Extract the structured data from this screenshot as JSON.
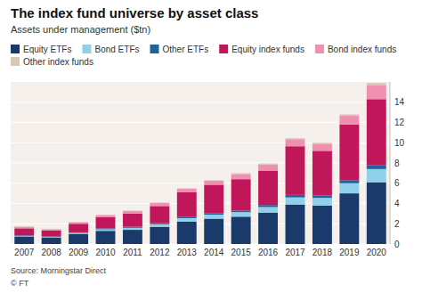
{
  "chart_data": {
    "type": "bar",
    "stacked": true,
    "title": "The index fund universe by asset class",
    "y_label": "Assets under management ($tn)",
    "annotations": [
      "Source: Morningstar Direct",
      "© FT"
    ],
    "categories": [
      "2007",
      "2008",
      "2009",
      "2010",
      "2011",
      "2012",
      "2013",
      "2014",
      "2015",
      "2016",
      "2017",
      "2018",
      "2019",
      "2020"
    ],
    "series": [
      {
        "name": "Equity ETFs",
        "color": "#1a3a6b",
        "values": [
          0.75,
          0.65,
          1.0,
          1.3,
          1.4,
          1.7,
          2.2,
          2.5,
          2.7,
          3.1,
          3.9,
          3.8,
          5.0,
          6.1
        ]
      },
      {
        "name": "Bond ETFs",
        "color": "#90d0e8",
        "values": [
          0.05,
          0.05,
          0.1,
          0.15,
          0.2,
          0.25,
          0.35,
          0.4,
          0.45,
          0.55,
          0.7,
          0.75,
          1.0,
          1.3
        ]
      },
      {
        "name": "Other ETFs",
        "color": "#2060a0",
        "values": [
          0.05,
          0.05,
          0.05,
          0.1,
          0.1,
          0.1,
          0.15,
          0.15,
          0.15,
          0.2,
          0.25,
          0.25,
          0.3,
          0.4
        ]
      },
      {
        "name": "Equity index funds",
        "color": "#c0175a",
        "values": [
          0.7,
          0.6,
          0.85,
          1.1,
          1.3,
          1.7,
          2.4,
          2.8,
          3.1,
          3.4,
          4.8,
          4.4,
          5.5,
          6.5
        ]
      },
      {
        "name": "Bond index funds",
        "color": "#f090b0",
        "values": [
          0.15,
          0.1,
          0.15,
          0.2,
          0.25,
          0.3,
          0.35,
          0.4,
          0.5,
          0.6,
          0.7,
          0.7,
          0.9,
          1.4
        ]
      },
      {
        "name": "Other index funds",
        "color": "#d8c8b8",
        "values": [
          0.05,
          0.05,
          0.05,
          0.05,
          0.05,
          0.05,
          0.05,
          0.05,
          0.1,
          0.1,
          0.1,
          0.1,
          0.1,
          0.2
        ]
      }
    ],
    "ylim": [
      0,
      16
    ],
    "yticks": [
      0,
      2,
      4,
      6,
      8,
      10,
      12,
      14
    ],
    "grid": true,
    "legend": "top"
  }
}
